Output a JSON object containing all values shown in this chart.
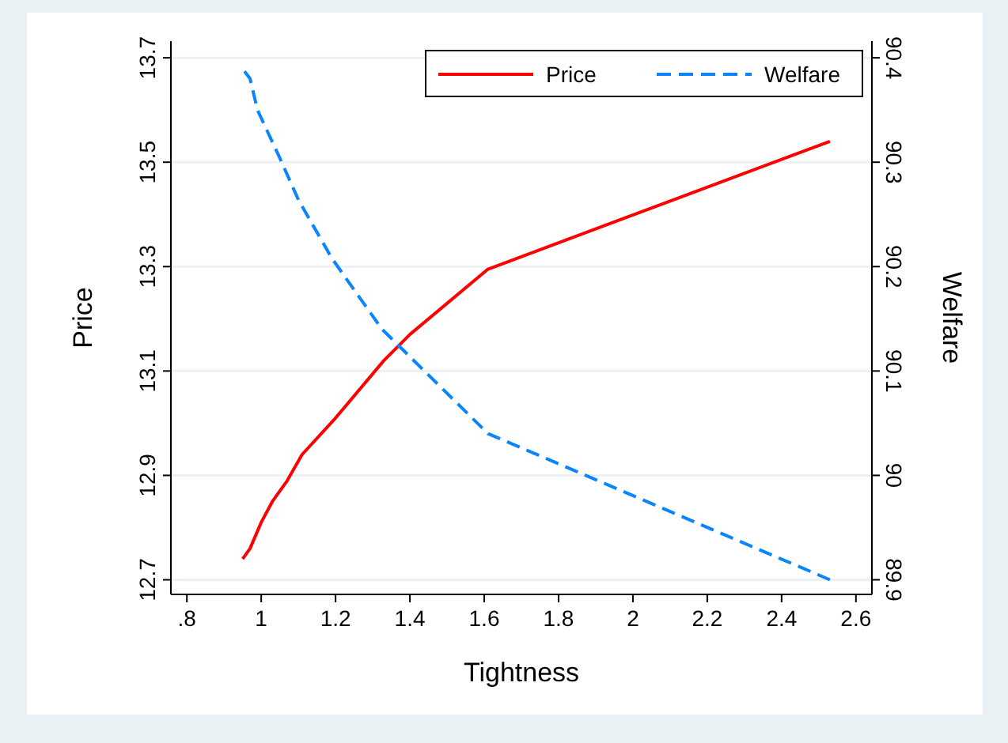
{
  "chart_data": {
    "type": "line",
    "xlabel": "Tightness",
    "ylabel": "Price",
    "y2label": "Welfare",
    "xlim": [
      0.757,
      2.643
    ],
    "xticks": [
      {
        "value": 0.8,
        "label": ".8"
      },
      1,
      1.2,
      1.4,
      1.6,
      1.8,
      2,
      2.2,
      2.4,
      2.6
    ],
    "ylim": [
      12.672,
      13.732
    ],
    "yticks": [
      12.7,
      12.9,
      13.1,
      13.3,
      13.5,
      13.7
    ],
    "y2lim": [
      89.886,
      90.416
    ],
    "y2ticks": [
      89.9,
      90,
      90.1,
      90.2,
      90.3,
      90.4
    ],
    "grid": "y",
    "legend": "top right",
    "series": [
      {
        "name": "Price",
        "color": "#ff0000",
        "line_style": "solid",
        "x": [
          0.95,
          0.97,
          1.0,
          1.03,
          1.07,
          1.11,
          1.2,
          1.33,
          1.4,
          1.61,
          2.53
        ],
        "values": [
          12.74,
          12.76,
          12.81,
          12.85,
          12.89,
          12.94,
          13.01,
          13.12,
          13.17,
          13.295,
          13.54
        ]
      },
      {
        "name": "Welfare",
        "color": "#0a84ff",
        "line_style": "dashed",
        "axis": "y2",
        "x": [
          0.955,
          0.97,
          0.99,
          1.05,
          1.1,
          1.19,
          1.325,
          1.61,
          2.53
        ],
        "values": [
          90.387,
          90.38,
          90.35,
          90.304,
          90.264,
          90.208,
          90.14,
          90.04,
          89.9
        ]
      }
    ]
  }
}
